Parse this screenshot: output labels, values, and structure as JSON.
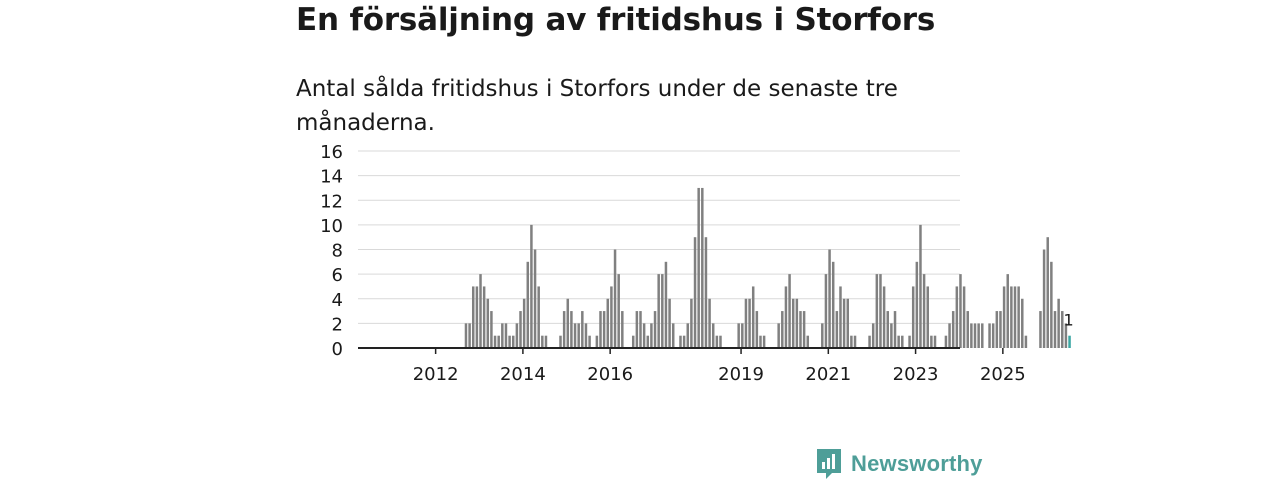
{
  "title": "En försäljning av fritidshus i Storfors",
  "subtitle": "Antal sålda fritidshus i Storfors under de senaste tre månaderna.",
  "brand": {
    "name": "Newsworthy",
    "color": "#4e9e98"
  },
  "colors": {
    "bar": "#808080",
    "highlight": "#3aa7a3",
    "grid": "#d9d9d9",
    "axis": "#222222"
  },
  "chart_data": {
    "type": "bar",
    "title": "En försäljning av fritidshus i Storfors",
    "xlabel": "",
    "ylabel": "",
    "ylim": [
      0,
      16
    ],
    "yticks": [
      0,
      2,
      4,
      6,
      8,
      10,
      12,
      14,
      16
    ],
    "grid": true,
    "x_start": "2011-01",
    "x_tick_labels": [
      "2012",
      "2014",
      "2016",
      "2019",
      "2021",
      "2023",
      "2025"
    ],
    "highlight_label": "1",
    "values": [
      0,
      0,
      0,
      0,
      0,
      0,
      0,
      0,
      0,
      0,
      0,
      0,
      0,
      0,
      0,
      0,
      0,
      0,
      0,
      0,
      2,
      2,
      5,
      5,
      6,
      5,
      4,
      3,
      1,
      1,
      2,
      2,
      1,
      1,
      2,
      3,
      4,
      7,
      10,
      8,
      5,
      1,
      1,
      0,
      0,
      0,
      1,
      3,
      4,
      3,
      2,
      2,
      3,
      2,
      1,
      0,
      1,
      3,
      3,
      4,
      5,
      8,
      6,
      3,
      0,
      0,
      1,
      3,
      3,
      2,
      1,
      2,
      3,
      6,
      6,
      7,
      4,
      2,
      0,
      1,
      1,
      2,
      4,
      9,
      13,
      13,
      9,
      4,
      2,
      1,
      1,
      0,
      0,
      0,
      0,
      2,
      2,
      4,
      4,
      5,
      3,
      1,
      1,
      0,
      0,
      0,
      2,
      3,
      5,
      6,
      4,
      4,
      3,
      3,
      1,
      0,
      0,
      0,
      2,
      6,
      8,
      7,
      3,
      5,
      4,
      4,
      1,
      1,
      0,
      0,
      0,
      1,
      2,
      6,
      6,
      5,
      3,
      2,
      3,
      1,
      1,
      0,
      1,
      5,
      7,
      10,
      6,
      5,
      1,
      1,
      0,
      0,
      1,
      2,
      3,
      5,
      6,
      5,
      3,
      2,
      2,
      2,
      2,
      0,
      2,
      2,
      3,
      3,
      5,
      6,
      5,
      5,
      5,
      4,
      1,
      0,
      0,
      0,
      3,
      8,
      9,
      7,
      3,
      4,
      3,
      2,
      1
    ]
  }
}
